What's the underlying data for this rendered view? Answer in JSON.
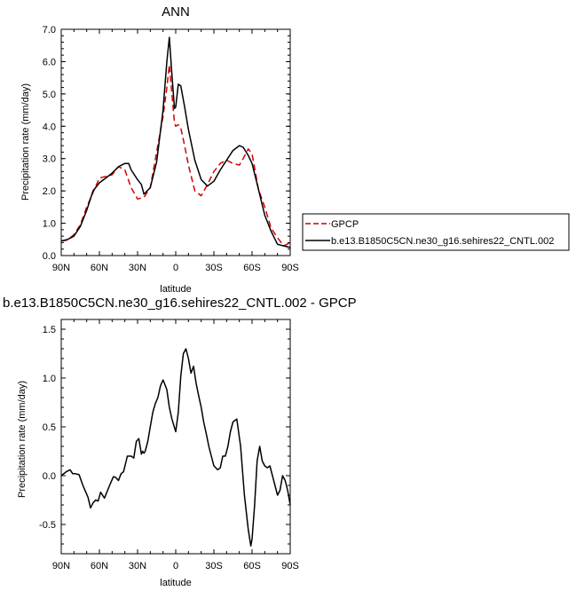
{
  "chart_data": [
    {
      "type": "line",
      "title": "ANN",
      "xlabel": "latitude",
      "ylabel": "Precipitation rate (mm/day)",
      "xlim": [
        -90,
        90
      ],
      "ylim": [
        0,
        7
      ],
      "x_reversed": true,
      "xticks": [
        {
          "v": 90,
          "label": "90N"
        },
        {
          "v": 60,
          "label": "60N"
        },
        {
          "v": 30,
          "label": "30N"
        },
        {
          "v": 0,
          "label": "0"
        },
        {
          "v": -30,
          "label": "30S"
        },
        {
          "v": -60,
          "label": "60S"
        },
        {
          "v": -90,
          "label": "90S"
        }
      ],
      "yticks": [
        {
          "v": 0,
          "label": "0.0"
        },
        {
          "v": 1,
          "label": "1.0"
        },
        {
          "v": 2,
          "label": "2.0"
        },
        {
          "v": 3,
          "label": "3.0"
        },
        {
          "v": 4,
          "label": "4.0"
        },
        {
          "v": 5,
          "label": "5.0"
        },
        {
          "v": 6,
          "label": "6.0"
        },
        {
          "v": 7,
          "label": "7.0"
        }
      ],
      "legend_position": "right",
      "series": [
        {
          "name": "GPCP",
          "color": "#d40000",
          "dashed": true,
          "x": [
            90,
            85,
            80,
            75,
            70,
            65,
            60,
            55,
            50,
            45,
            40,
            35,
            30,
            25,
            20,
            15,
            10,
            7,
            5,
            3,
            1,
            0,
            -2,
            -4,
            -7,
            -10,
            -15,
            -20,
            -25,
            -30,
            -35,
            -40,
            -45,
            -50,
            -53,
            -57,
            -60,
            -65,
            -70,
            -75,
            -80,
            -85,
            -90
          ],
          "y": [
            0.45,
            0.48,
            0.65,
            0.95,
            1.5,
            1.95,
            2.4,
            2.45,
            2.5,
            2.75,
            2.65,
            2.1,
            1.75,
            1.8,
            2.1,
            3.2,
            4.3,
            5.2,
            5.9,
            5.0,
            4.1,
            4.0,
            4.05,
            3.95,
            3.4,
            2.8,
            2.0,
            1.85,
            2.2,
            2.6,
            2.85,
            2.95,
            2.85,
            2.8,
            3.0,
            3.3,
            3.15,
            2.05,
            1.5,
            0.85,
            0.55,
            0.3,
            0.4
          ]
        },
        {
          "name": "b.e13.B1850C5CN.ne30_g16.sehires22_CNTL.002",
          "color": "#000000",
          "dashed": false,
          "x": [
            90,
            85,
            80,
            75,
            70,
            65,
            60,
            55,
            50,
            45,
            40,
            37,
            35,
            30,
            27,
            25,
            20,
            15,
            10,
            7,
            5,
            3,
            1,
            0,
            -2,
            -4,
            -7,
            -10,
            -15,
            -20,
            -25,
            -30,
            -35,
            -40,
            -45,
            -50,
            -53,
            -57,
            -60,
            -65,
            -70,
            -75,
            -80,
            -85,
            -90
          ],
          "y": [
            0.45,
            0.5,
            0.6,
            0.9,
            1.4,
            2.0,
            2.25,
            2.4,
            2.55,
            2.75,
            2.85,
            2.85,
            2.65,
            2.35,
            2.2,
            1.9,
            2.1,
            2.9,
            4.5,
            6.0,
            6.75,
            5.6,
            4.55,
            4.6,
            5.3,
            5.25,
            4.6,
            3.9,
            2.95,
            2.35,
            2.15,
            2.3,
            2.65,
            2.95,
            3.25,
            3.4,
            3.35,
            3.1,
            2.85,
            2.05,
            1.25,
            0.75,
            0.35,
            0.3,
            0.25
          ]
        }
      ]
    },
    {
      "type": "line",
      "title": "b.e13.B1850C5CN.ne30_g16.sehires22_CNTL.002 - GPCP",
      "xlabel": "latitude",
      "ylabel": "Precipitation rate (mm/day)",
      "xlim": [
        -90,
        90
      ],
      "ylim": [
        -0.8,
        1.6
      ],
      "x_reversed": true,
      "xticks": [
        {
          "v": 90,
          "label": "90N"
        },
        {
          "v": 60,
          "label": "60N"
        },
        {
          "v": 30,
          "label": "30N"
        },
        {
          "v": 0,
          "label": "0"
        },
        {
          "v": -30,
          "label": "30S"
        },
        {
          "v": -60,
          "label": "60S"
        },
        {
          "v": -90,
          "label": "90S"
        }
      ],
      "yticks": [
        {
          "v": -0.5,
          "label": "-0.5"
        },
        {
          "v": 0,
          "label": "0.0"
        },
        {
          "v": 0.5,
          "label": "0.5"
        },
        {
          "v": 1,
          "label": "1.0"
        },
        {
          "v": 1.5,
          "label": "1.5"
        }
      ],
      "series": [
        {
          "color": "#000000",
          "dashed": false,
          "x": [
            90,
            86,
            83,
            81,
            79,
            76,
            73,
            71,
            69,
            67,
            65,
            63,
            61,
            59,
            56,
            52,
            49,
            47,
            45,
            43,
            41,
            38,
            35,
            33,
            31,
            29,
            28,
            27,
            26,
            25,
            24,
            22,
            20,
            18,
            16,
            14,
            12,
            10,
            9,
            7,
            5,
            3,
            0,
            -2,
            -4,
            -6,
            -8,
            -10,
            -12,
            -14,
            -16,
            -18,
            -20,
            -22,
            -24,
            -26,
            -28,
            -30,
            -33,
            -35,
            -37,
            -39,
            -41,
            -43,
            -45,
            -48,
            -51,
            -54,
            -57,
            -59,
            -60,
            -62,
            -64,
            -66,
            -68,
            -70,
            -72,
            -74,
            -77,
            -80,
            -82,
            -84,
            -86,
            -88,
            -90
          ],
          "y": [
            0.0,
            0.04,
            0.06,
            0.02,
            0.02,
            0.01,
            -0.1,
            -0.16,
            -0.22,
            -0.33,
            -0.28,
            -0.25,
            -0.26,
            -0.17,
            -0.23,
            -0.1,
            -0.01,
            -0.02,
            -0.05,
            0.02,
            0.04,
            0.2,
            0.2,
            0.18,
            0.35,
            0.38,
            0.3,
            0.22,
            0.25,
            0.23,
            0.25,
            0.35,
            0.5,
            0.65,
            0.74,
            0.8,
            0.92,
            0.98,
            0.95,
            0.88,
            0.7,
            0.58,
            0.45,
            0.65,
            1.02,
            1.25,
            1.3,
            1.2,
            1.05,
            1.12,
            0.95,
            0.82,
            0.7,
            0.55,
            0.43,
            0.3,
            0.2,
            0.1,
            0.06,
            0.08,
            0.2,
            0.2,
            0.3,
            0.45,
            0.55,
            0.58,
            0.3,
            -0.2,
            -0.55,
            -0.72,
            -0.65,
            -0.3,
            0.15,
            0.3,
            0.15,
            0.1,
            0.08,
            0.1,
            -0.05,
            -0.2,
            -0.15,
            0.0,
            -0.05,
            -0.15,
            -0.3
          ]
        }
      ]
    }
  ]
}
